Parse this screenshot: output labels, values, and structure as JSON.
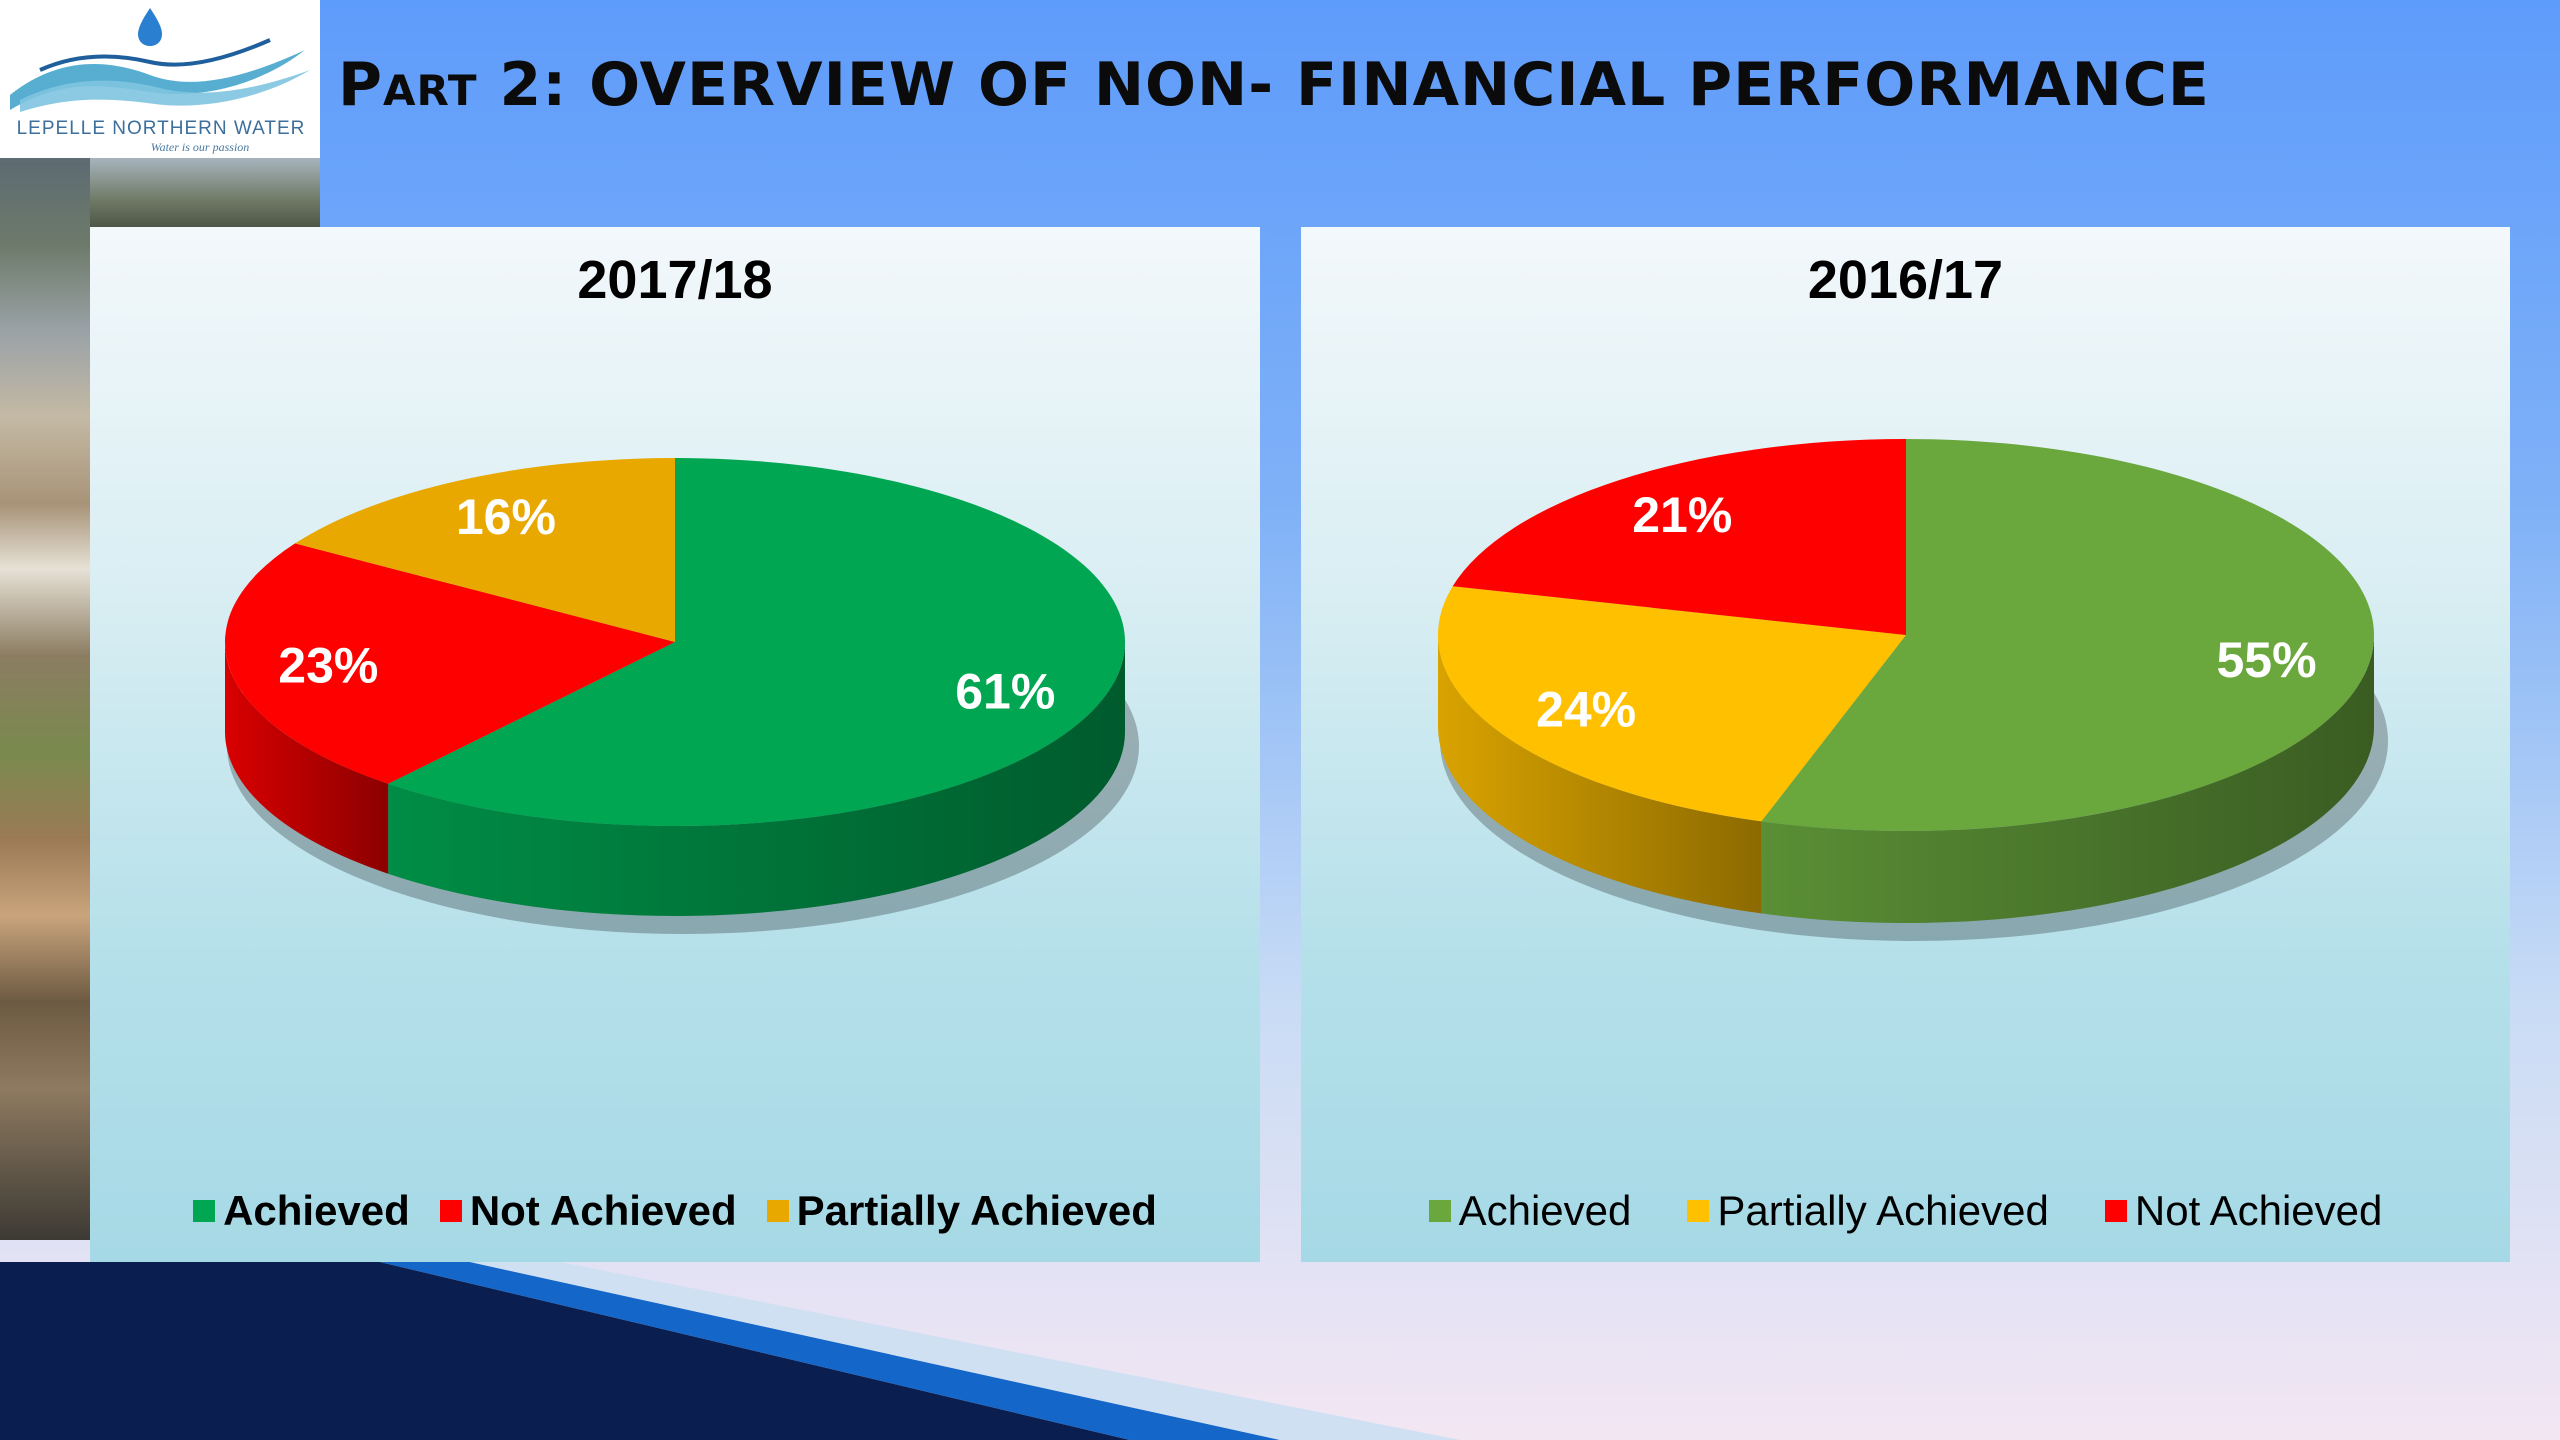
{
  "logo": {
    "name": "LEPELLE NORTHERN WATER",
    "tagline": "Water is our passion"
  },
  "slide": {
    "title_prefix": "Part 2:",
    "title_main": "OVERVIEW OF NON- FINANCIAL PERFORMANCE"
  },
  "colors": {
    "achieved_2017": "#00a651",
    "not_achieved": "#ff0000",
    "partially_achieved_2017": "#e8a800",
    "achieved_2016": "#6aa83e",
    "partially_achieved_2016": "#ffc000"
  },
  "chart_data": [
    {
      "type": "pie",
      "title": "2017/18",
      "labels": [
        "Achieved",
        "Not Achieved",
        "Partially Achieved"
      ],
      "values": [
        61,
        23,
        16
      ],
      "value_labels": [
        "61%",
        "23%",
        "16%"
      ],
      "colors": [
        "#00a651",
        "#ff0000",
        "#e8a800"
      ],
      "legend_position": "bottom",
      "legend_style": "bold",
      "style": "3d"
    },
    {
      "type": "pie",
      "title": "2016/17",
      "labels": [
        "Achieved",
        "Partially Achieved",
        "Not Achieved"
      ],
      "values": [
        55,
        24,
        21
      ],
      "value_labels": [
        "55%",
        "24%",
        "21%"
      ],
      "colors": [
        "#6aa83e",
        "#ffc000",
        "#ff0000"
      ],
      "legend_position": "bottom",
      "legend_style": "regular",
      "style": "3d"
    }
  ]
}
